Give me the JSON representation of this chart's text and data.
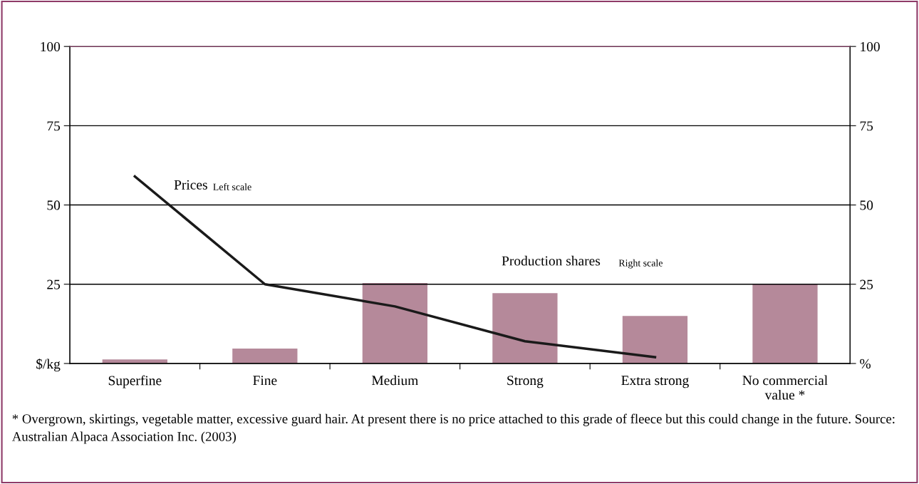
{
  "chart_data": {
    "type": "bar",
    "categories": [
      "Superfine",
      "Fine",
      "Medium",
      "Strong",
      "Extra strong",
      "No commercial\nvalue *"
    ],
    "series": [
      {
        "name": "Production shares",
        "axis": "y2",
        "color": "#b5899a",
        "values": [
          1.3,
          4.7,
          25.4,
          22.2,
          15,
          25
        ]
      },
      {
        "name": "Prices",
        "type": "line",
        "axis": "y",
        "color": "#1a1a1a",
        "values": [
          59,
          25,
          18,
          7,
          2,
          null
        ]
      }
    ],
    "ylim": [
      0,
      100
    ],
    "yticks": [
      {
        "value": 0,
        "label": "$/kg"
      },
      25,
      50,
      75,
      100
    ],
    "y2lim": [
      0,
      100
    ],
    "y2ticks": [
      {
        "value": 0,
        "label": "%"
      },
      25,
      50,
      75,
      100
    ],
    "grid": "y",
    "legend": false,
    "marker": "none",
    "line_style": "solid",
    "annotations": [
      "Left scale",
      "Right scale",
      "* Overgrown, skirtings, vegetable matter, excessive guard hair. At present there is no price attached to this grade of fleece but this could change in the future. Source: Australian Alpaca Association Inc. (2003)"
    ]
  }
}
